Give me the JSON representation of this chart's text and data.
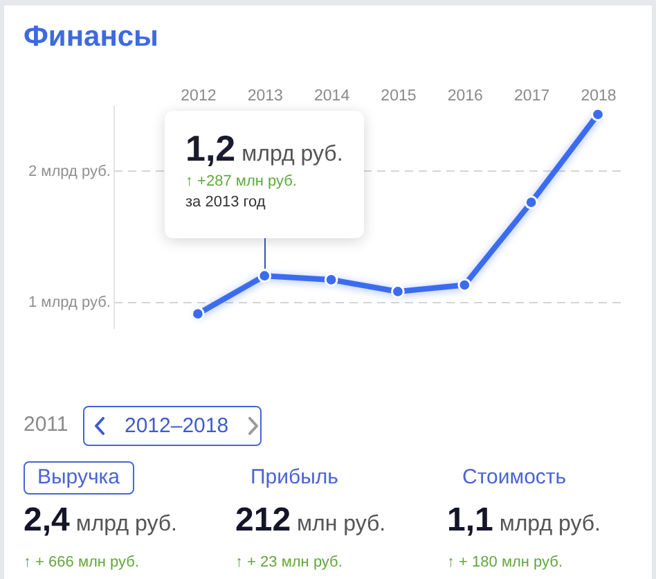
{
  "chart_data": {
    "type": "line",
    "title": "Финансы",
    "categories": [
      "2012",
      "2013",
      "2014",
      "2015",
      "2016",
      "2017",
      "2018"
    ],
    "series": [
      {
        "color": "#3b6cf0",
        "values": [
          0.91,
          1.2,
          1.17,
          1.08,
          1.13,
          1.76,
          2.43
        ]
      }
    ],
    "ylim": [
      0.8,
      2.5
    ],
    "yticks": [
      {
        "value": 1,
        "label": "1 млрд руб."
      },
      {
        "value": 2,
        "label": "2 млрд руб."
      }
    ],
    "grid": "y",
    "marker": "circle",
    "line_style": "solid",
    "annotations": [
      "1,2 млрд руб.",
      "↑ +287 млн руб.",
      "за 2013 год",
      "2011",
      "2012–2018",
      "Выручка",
      "Прибыль",
      "Стоимость",
      "2,4 млрд руб.",
      "212 млн руб.",
      "1,1 млрд руб.",
      "↑ + 666 млн руб.",
      "↑ + 23 млн руб.",
      "↑ + 180 млн руб."
    ]
  }
}
